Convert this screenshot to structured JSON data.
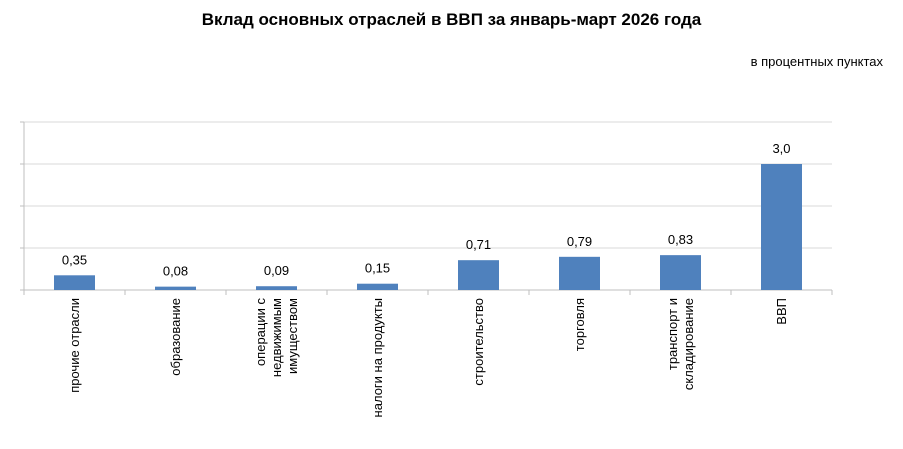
{
  "chart_data": {
    "type": "bar",
    "title": "Вклад основных отраслей в ВВП за январь-март 2026 года",
    "unit_label": "в процентных пунктах",
    "categories": [
      [
        "прочие отрасли"
      ],
      [
        "образование"
      ],
      [
        "операции с",
        "недвижимым",
        "имуществом"
      ],
      [
        "налоги на продукты"
      ],
      [
        "строительство"
      ],
      [
        "торговля"
      ],
      [
        "транспорт и",
        "складирование"
      ],
      [
        "ВВП"
      ]
    ],
    "values": [
      0.35,
      0.08,
      0.09,
      0.15,
      0.71,
      0.79,
      0.83,
      3.0
    ],
    "data_labels": [
      "0,35",
      "0,08",
      "0,09",
      "0,15",
      "0,71",
      "0,79",
      "0,83",
      "3,0"
    ],
    "ylim": [
      0,
      4
    ],
    "y_gridlines": [
      0,
      1,
      2,
      3,
      4
    ],
    "grid": true,
    "legend": "none",
    "bar_color": "#4f81bd",
    "grid_color": "#d9d9d9"
  }
}
